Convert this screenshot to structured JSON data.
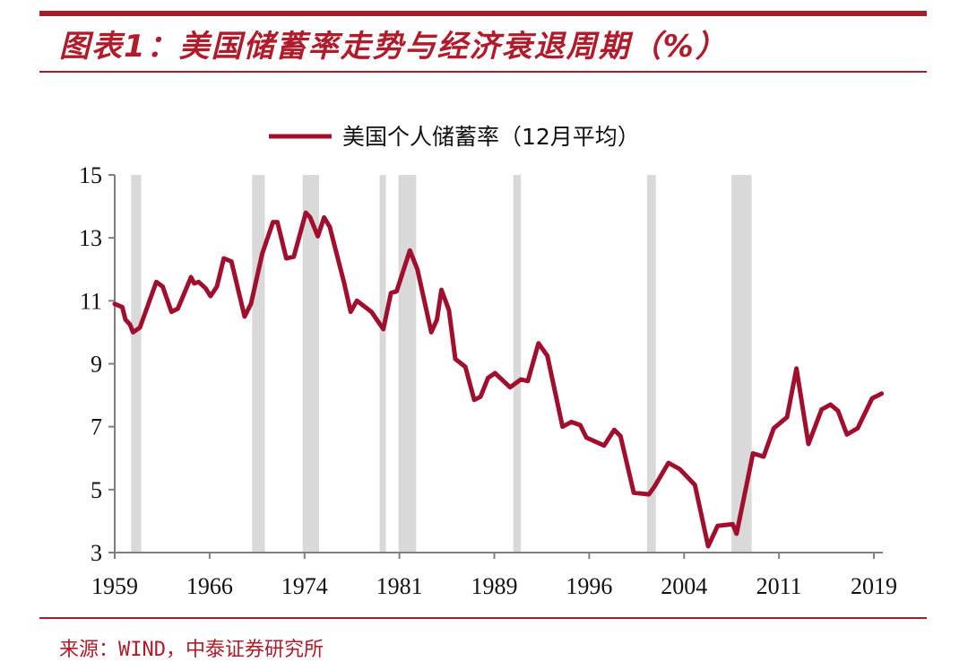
{
  "header": {
    "title": "图表1：美国储蓄率走势与经济衰退周期（%）"
  },
  "footer": {
    "source": "来源：WIND，中泰证券研究所"
  },
  "colors": {
    "accent": "#a31f2a",
    "series": "#c0143c",
    "recession": "#d9d9d9",
    "axis": "#808080"
  },
  "chart_data": {
    "type": "line",
    "title": "",
    "xlabel": "",
    "ylabel": "",
    "ylim": [
      3,
      15
    ],
    "xlim": [
      1959,
      2019.9
    ],
    "yticks": [
      "15",
      "13",
      "11",
      "9",
      "7",
      "5",
      "3"
    ],
    "xtick_labels": [
      "1959",
      "1966",
      "1974",
      "1981",
      "1989",
      "1996",
      "2004",
      "2011",
      "2019"
    ],
    "grid": false,
    "legend_position": "top-center",
    "recession_periods": [
      [
        1960.3,
        1961.1
      ],
      [
        1969.9,
        1970.9
      ],
      [
        1973.9,
        1975.2
      ],
      [
        1980.0,
        1980.5
      ],
      [
        1981.5,
        1982.9
      ],
      [
        1990.6,
        1991.2
      ],
      [
        2001.2,
        2001.9
      ],
      [
        2007.9,
        2009.5
      ]
    ],
    "series": [
      {
        "name": "美国个人储蓄率（12月平均）",
        "points": [
          [
            1959.0,
            10.9
          ],
          [
            1959.6,
            10.8
          ],
          [
            1959.85,
            10.4
          ],
          [
            1960.2,
            10.25
          ],
          [
            1960.45,
            10.0
          ],
          [
            1961.0,
            10.15
          ],
          [
            1962.3,
            11.6
          ],
          [
            1962.8,
            11.45
          ],
          [
            1963.5,
            10.65
          ],
          [
            1964.0,
            10.75
          ],
          [
            1965.05,
            11.75
          ],
          [
            1965.3,
            11.55
          ],
          [
            1965.65,
            11.6
          ],
          [
            1966.2,
            11.4
          ],
          [
            1966.6,
            11.15
          ],
          [
            1967.1,
            11.45
          ],
          [
            1967.65,
            12.35
          ],
          [
            1968.25,
            12.25
          ],
          [
            1969.3,
            10.5
          ],
          [
            1969.8,
            10.9
          ],
          [
            1970.7,
            12.5
          ],
          [
            1971.55,
            13.5
          ],
          [
            1971.9,
            13.5
          ],
          [
            1972.6,
            12.35
          ],
          [
            1973.2,
            12.4
          ],
          [
            1974.15,
            13.8
          ],
          [
            1974.5,
            13.65
          ],
          [
            1975.1,
            13.05
          ],
          [
            1975.6,
            13.65
          ],
          [
            1976.05,
            13.35
          ],
          [
            1977.2,
            11.55
          ],
          [
            1977.7,
            10.65
          ],
          [
            1978.2,
            11.0
          ],
          [
            1979.35,
            10.65
          ],
          [
            1980.3,
            10.1
          ],
          [
            1980.9,
            11.25
          ],
          [
            1981.35,
            11.3
          ],
          [
            1982.4,
            12.6
          ],
          [
            1983.0,
            12.0
          ],
          [
            1984.1,
            10.0
          ],
          [
            1984.55,
            10.4
          ],
          [
            1984.9,
            11.35
          ],
          [
            1985.5,
            10.7
          ],
          [
            1986.0,
            9.15
          ],
          [
            1986.8,
            8.9
          ],
          [
            1987.5,
            7.85
          ],
          [
            1988.0,
            7.95
          ],
          [
            1988.6,
            8.55
          ],
          [
            1989.15,
            8.7
          ],
          [
            1990.35,
            8.25
          ],
          [
            1991.2,
            8.5
          ],
          [
            1991.75,
            8.45
          ],
          [
            1992.6,
            9.65
          ],
          [
            1993.3,
            9.25
          ],
          [
            1994.5,
            7.0
          ],
          [
            1995.2,
            7.15
          ],
          [
            1995.9,
            7.05
          ],
          [
            1996.4,
            6.65
          ],
          [
            1997.8,
            6.4
          ],
          [
            1998.6,
            6.9
          ],
          [
            1999.1,
            6.7
          ],
          [
            2000.15,
            4.9
          ],
          [
            2001.35,
            4.85
          ],
          [
            2001.8,
            5.1
          ],
          [
            2002.9,
            5.85
          ],
          [
            2003.8,
            5.65
          ],
          [
            2005.0,
            5.15
          ],
          [
            2006.05,
            3.2
          ],
          [
            2006.8,
            3.85
          ],
          [
            2008.0,
            3.9
          ],
          [
            2008.3,
            3.6
          ],
          [
            2009.6,
            6.15
          ],
          [
            2010.45,
            6.05
          ],
          [
            2011.25,
            6.95
          ],
          [
            2012.3,
            7.3
          ],
          [
            2013.05,
            8.85
          ],
          [
            2014.0,
            6.45
          ],
          [
            2015.05,
            7.55
          ],
          [
            2015.75,
            7.7
          ],
          [
            2016.35,
            7.5
          ],
          [
            2017.05,
            6.75
          ],
          [
            2017.9,
            6.95
          ],
          [
            2019.05,
            7.9
          ],
          [
            2019.8,
            8.05
          ]
        ]
      }
    ]
  }
}
